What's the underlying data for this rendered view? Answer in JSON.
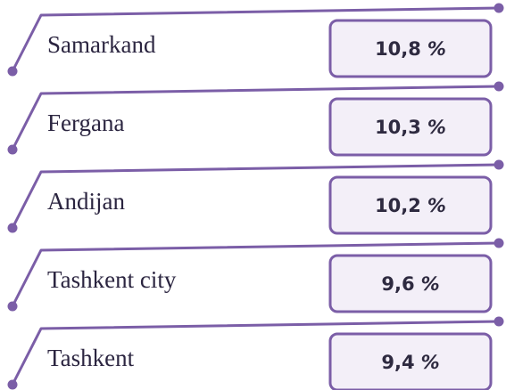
{
  "items": [
    {
      "label": "Samarkand",
      "value": "10,8",
      "unit": "%"
    },
    {
      "label": "Fergana",
      "value": "10,3",
      "unit": "%"
    },
    {
      "label": "Andijan",
      "value": "10,2",
      "unit": "%"
    },
    {
      "label": "Tashkent city",
      "value": "9,6",
      "unit": "%"
    },
    {
      "label": "Tashkent",
      "value": "9,4",
      "unit": "%"
    }
  ]
}
